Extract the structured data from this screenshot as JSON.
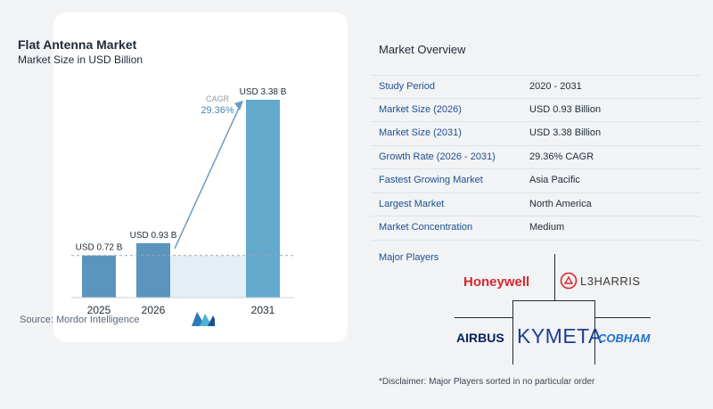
{
  "chart_data": {
    "type": "bar",
    "title": "Flat Antenna Market",
    "subtitle": "Market Size in USD Billion",
    "categories": [
      "2025",
      "2026",
      "2031"
    ],
    "values": [
      0.72,
      0.93,
      3.38
    ],
    "data_labels": [
      "USD 0.72 B",
      "USD 0.93 B",
      "USD 3.38 B"
    ],
    "bar_color": "#5b94bd",
    "bar_color_highlight": "#63a9cc",
    "cagr_label": "CAGR",
    "cagr_value": "29.36%",
    "grid": false
  },
  "source": "Source: Mordor Intelligence",
  "overview": {
    "title": "Market Overview",
    "rows": [
      {
        "label": "Study Period",
        "value": "2020 - 2031"
      },
      {
        "label": "Market Size (2026)",
        "value": "USD 0.93 Billion"
      },
      {
        "label": "Market Size (2031)",
        "value": "USD 3.38 Billion"
      },
      {
        "label": "Growth Rate (2026 - 2031)",
        "value": "29.36% CAGR"
      },
      {
        "label": "Fastest Growing Market",
        "value": "Asia Pacific"
      },
      {
        "label": "Largest Market",
        "value": "North America"
      },
      {
        "label": "Market Concentration",
        "value": "Medium"
      }
    ]
  },
  "players": {
    "title": "Major Players",
    "logos": [
      "Honeywell",
      "L3HARRIS",
      "AIRBUS",
      "KYMETA",
      "COBHAM"
    ],
    "colors": {
      "honeywell": "#d9262c",
      "l3harris": "#3a3a3a",
      "airbus": "#00205b",
      "kymeta": "#1c3f94",
      "cobham": "#1d6fd1"
    }
  },
  "disclaimer": "*Disclaimer: Major Players sorted in no particular order"
}
